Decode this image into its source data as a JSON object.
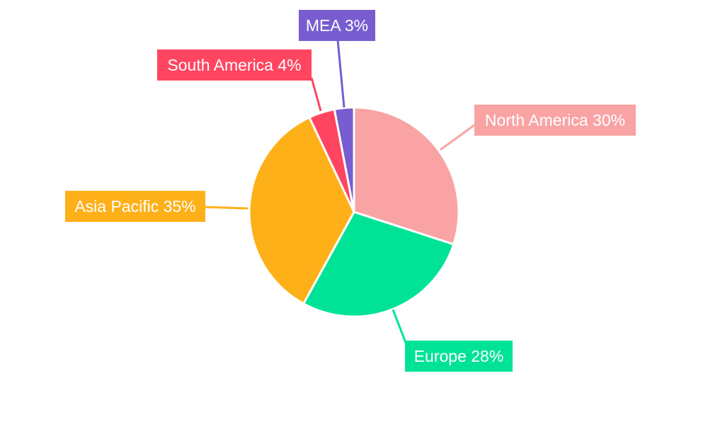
{
  "chart_data": {
    "type": "pie",
    "title": "",
    "start_angle": "top, clockwise",
    "legend": "none",
    "slices": [
      {
        "label": "North America",
        "value": 30,
        "text": "North America 30%",
        "color": "#F9A3A4"
      },
      {
        "label": "Europe",
        "value": 28,
        "text": "Europe 28%",
        "color": "#00E396"
      },
      {
        "label": "Asia Pacific",
        "value": 35,
        "text": "Asia Pacific 35%",
        "color": "#FEB019"
      },
      {
        "label": "South America",
        "value": 4,
        "text": "South America 4%",
        "color": "#FF4560"
      },
      {
        "label": "MEA",
        "value": 3,
        "text": "MEA 3%",
        "color": "#775DD0"
      }
    ]
  }
}
